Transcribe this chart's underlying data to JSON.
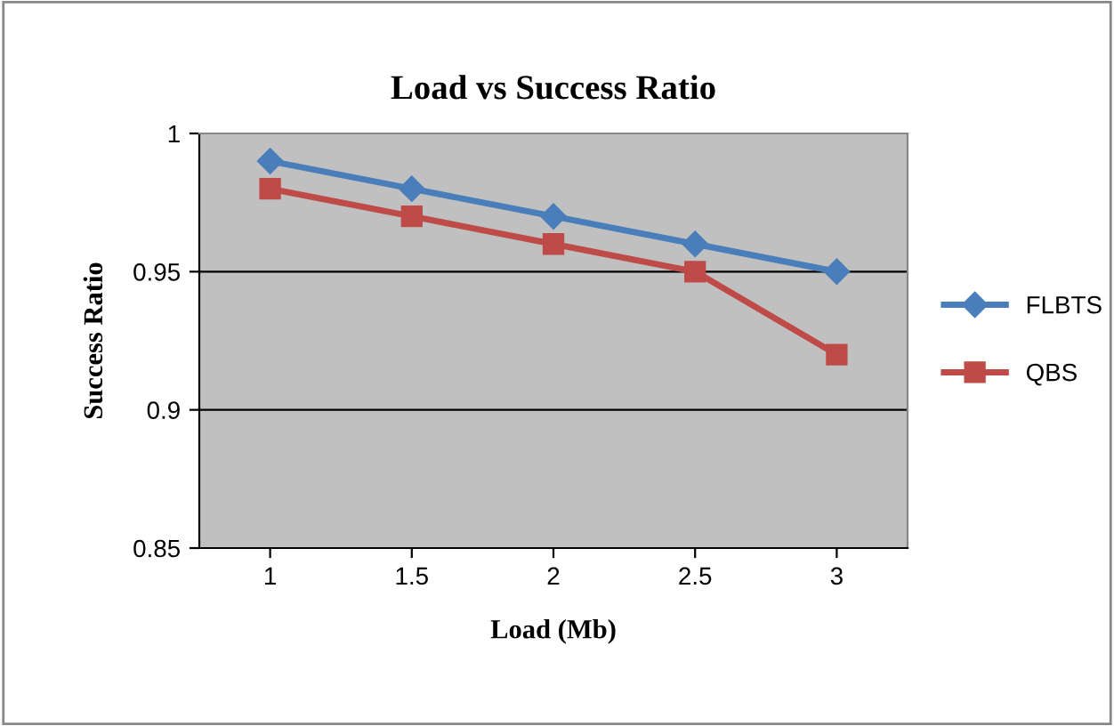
{
  "chart_data": {
    "type": "line",
    "title": "Load vs Success Ratio",
    "xlabel": "Load (Mb)",
    "ylabel": "Success Ratio",
    "categories": [
      "1",
      "1.5",
      "2",
      "2.5",
      "3"
    ],
    "series": [
      {
        "name": "FLBTS",
        "color": "#4a7ebb",
        "marker": "diamond",
        "values": [
          0.99,
          0.98,
          0.97,
          0.96,
          0.95
        ]
      },
      {
        "name": "QBS",
        "color": "#be4b48",
        "marker": "square",
        "values": [
          0.98,
          0.97,
          0.96,
          0.95,
          0.92
        ]
      }
    ],
    "ylim": [
      0.85,
      1
    ],
    "yticks": [
      0.85,
      0.9,
      0.95,
      1
    ],
    "grid": "y",
    "legend": "right",
    "line_style": "solid"
  }
}
